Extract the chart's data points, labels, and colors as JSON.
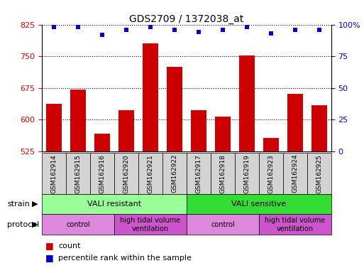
{
  "title": "GDS2709 / 1372038_at",
  "samples": [
    "GSM162914",
    "GSM162915",
    "GSM162916",
    "GSM162920",
    "GSM162921",
    "GSM162922",
    "GSM162917",
    "GSM162918",
    "GSM162919",
    "GSM162923",
    "GSM162924",
    "GSM162925"
  ],
  "bar_values": [
    638,
    672,
    568,
    622,
    780,
    725,
    622,
    607,
    752,
    557,
    662,
    635
  ],
  "percentile_values": [
    98,
    98,
    92,
    96,
    98,
    96,
    94,
    96,
    98,
    93,
    96,
    96
  ],
  "ylim_left": [
    525,
    825
  ],
  "ylim_right": [
    0,
    100
  ],
  "yticks_left": [
    525,
    600,
    675,
    750,
    825
  ],
  "yticks_right": [
    0,
    25,
    50,
    75,
    100
  ],
  "bar_color": "#cc0000",
  "dot_color": "#0000cc",
  "grid_color": "#000000",
  "tick_label_color_left": "#cc0000",
  "tick_label_color_right": "#0000cc",
  "sample_box_color": "#d3d3d3",
  "strain_labels": [
    {
      "text": "VALI resistant",
      "start": 0,
      "end": 5,
      "color": "#99ff99"
    },
    {
      "text": "VALI sensitive",
      "start": 6,
      "end": 11,
      "color": "#33dd33"
    }
  ],
  "protocol_labels": [
    {
      "text": "control",
      "start": 0,
      "end": 2,
      "color": "#dd88dd"
    },
    {
      "text": "high tidal volume\nventilation",
      "start": 3,
      "end": 5,
      "color": "#cc55cc"
    },
    {
      "text": "control",
      "start": 6,
      "end": 8,
      "color": "#dd88dd"
    },
    {
      "text": "high tidal volume\nventilation",
      "start": 9,
      "end": 11,
      "color": "#cc55cc"
    }
  ],
  "legend_count_color": "#cc0000",
  "legend_percentile_color": "#0000cc",
  "strain_left_label": "strain",
  "protocol_left_label": "protocol"
}
